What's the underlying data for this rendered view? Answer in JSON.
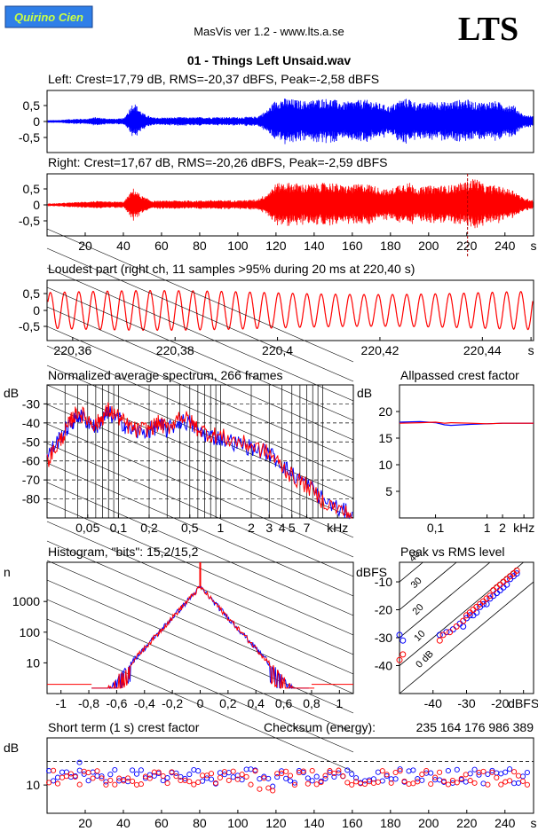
{
  "header": {
    "logo_badge": "Quirino Cien",
    "title": "MasVis ver 1.2 - www.lts.a.se",
    "filename": "01 - Things Left Unsaid.wav",
    "brand": "LTS",
    "colors": {
      "logo_bg": "#2f7fe8",
      "logo_text": "#c8ff46",
      "left": "#0000ff",
      "right": "#ff0000"
    }
  },
  "chart_data": [
    {
      "id": "left_waveform",
      "type": "line",
      "title": "Left: Crest=17,79 dB, RMS=-20,37 dBFS, Peak=-2,58 dBFS",
      "ylim": [
        -1,
        1
      ],
      "yticks": [
        "0,5",
        "0",
        "-0,5"
      ],
      "color": "#0000ff",
      "envelope": [
        0.05,
        0.05,
        0.08,
        0.1,
        0.1,
        0.16,
        0.12,
        0.1,
        0.12,
        0.72,
        0.3,
        0.15,
        0.15,
        0.15,
        0.16,
        0.15,
        0.16,
        0.16,
        0.17,
        0.16,
        0.16,
        0.17,
        0.18,
        0.4,
        0.8,
        0.85,
        0.8,
        0.75,
        0.8,
        0.85,
        0.82,
        0.7,
        0.75,
        0.8,
        0.78,
        0.65,
        0.55,
        0.8,
        0.85,
        0.65,
        0.72,
        0.75,
        0.7,
        0.78,
        0.82,
        0.7,
        0.72,
        0.75,
        0.65,
        0.6,
        0.25,
        0.2
      ]
    },
    {
      "id": "right_waveform",
      "type": "line",
      "title": "Right: Crest=17,67 dB, RMS=-20,26 dBFS, Peak=-2,59 dBFS",
      "ylim": [
        -1,
        1
      ],
      "yticks": [
        "0,5",
        "0",
        "-0,5"
      ],
      "color": "#ff0000",
      "envelope": [
        0.05,
        0.06,
        0.08,
        0.1,
        0.12,
        0.14,
        0.12,
        0.12,
        0.12,
        0.6,
        0.3,
        0.15,
        0.15,
        0.16,
        0.16,
        0.16,
        0.16,
        0.17,
        0.17,
        0.17,
        0.17,
        0.18,
        0.2,
        0.4,
        0.78,
        0.82,
        0.8,
        0.75,
        0.75,
        0.8,
        0.82,
        0.7,
        0.72,
        0.78,
        0.75,
        0.6,
        0.55,
        0.78,
        0.82,
        0.62,
        0.7,
        0.72,
        0.7,
        0.76,
        0.85,
        1.0,
        0.7,
        0.72,
        0.62,
        0.55,
        0.25,
        0.2
      ],
      "marker_s": 220.4,
      "xlim": [
        0,
        255
      ],
      "xticks": [
        "20",
        "40",
        "60",
        "80",
        "100",
        "120",
        "140",
        "160",
        "180",
        "200",
        "220",
        "240",
        "s"
      ]
    },
    {
      "id": "loudest_part",
      "type": "line",
      "title": "Loudest part (right ch, 11 samples >95% during 20 ms at 220,40 s)",
      "color": "#ff0000",
      "ylim": [
        -1,
        1
      ],
      "yticks": [
        "0,5",
        "0",
        "-0,5"
      ],
      "xlim": [
        220.355,
        220.45
      ],
      "xticks": [
        "220,36",
        "220,38",
        "220,4",
        "220,42",
        "220,44",
        "s"
      ],
      "cycles": 34,
      "amplitude": 0.7
    },
    {
      "id": "spectrum",
      "type": "line",
      "title": "Normalized average spectrum, 266 frames",
      "ylabel": "dB",
      "yticks": [
        "-30",
        "-40",
        "-50",
        "-60",
        "-70",
        "-80"
      ],
      "xticks": [
        "0,05",
        "0,1",
        "0,2",
        "0,5",
        "1",
        "2",
        "3",
        "4",
        "5",
        "7",
        "kHz"
      ],
      "ylim": [
        -90,
        -20
      ],
      "series": [
        {
          "name": "Left",
          "color": "#0000ff",
          "points": [
            [
              0.02,
              -58
            ],
            [
              0.025,
              -50
            ],
            [
              0.03,
              -44
            ],
            [
              0.035,
              -40
            ],
            [
              0.04,
              -36
            ],
            [
              0.05,
              -39
            ],
            [
              0.06,
              -42
            ],
            [
              0.07,
              -38
            ],
            [
              0.08,
              -35
            ],
            [
              0.1,
              -38
            ],
            [
              0.12,
              -42
            ],
            [
              0.15,
              -45
            ],
            [
              0.2,
              -44
            ],
            [
              0.25,
              -41
            ],
            [
              0.3,
              -44
            ],
            [
              0.4,
              -39
            ],
            [
              0.5,
              -40
            ],
            [
              0.6,
              -44
            ],
            [
              0.8,
              -47
            ],
            [
              1,
              -48
            ],
            [
              1.5,
              -51
            ],
            [
              2,
              -53
            ],
            [
              3,
              -56
            ],
            [
              4,
              -62
            ],
            [
              5,
              -67
            ],
            [
              7,
              -72
            ],
            [
              10,
              -80
            ],
            [
              15,
              -86
            ],
            [
              20,
              -88
            ]
          ]
        },
        {
          "name": "Right",
          "color": "#ff0000",
          "points": [
            [
              0.02,
              -60
            ],
            [
              0.025,
              -52
            ],
            [
              0.03,
              -45
            ],
            [
              0.035,
              -38
            ],
            [
              0.04,
              -34
            ],
            [
              0.05,
              -38
            ],
            [
              0.06,
              -41
            ],
            [
              0.07,
              -37
            ],
            [
              0.08,
              -33
            ],
            [
              0.1,
              -37
            ],
            [
              0.12,
              -41
            ],
            [
              0.15,
              -44
            ],
            [
              0.2,
              -43
            ],
            [
              0.25,
              -40
            ],
            [
              0.3,
              -43
            ],
            [
              0.4,
              -36
            ],
            [
              0.5,
              -39
            ],
            [
              0.6,
              -43
            ],
            [
              0.8,
              -46
            ],
            [
              1,
              -47
            ],
            [
              1.5,
              -50
            ],
            [
              2,
              -52
            ],
            [
              3,
              -56
            ],
            [
              4,
              -63
            ],
            [
              5,
              -68
            ],
            [
              7,
              -73
            ],
            [
              10,
              -81
            ],
            [
              15,
              -86
            ],
            [
              20,
              -89
            ]
          ]
        }
      ]
    },
    {
      "id": "allpassed_crest",
      "type": "line",
      "title": "Allpassed crest factor",
      "ylabel": "dB",
      "ylim": [
        0,
        25
      ],
      "yticks": [
        "20",
        "15",
        "10",
        "5"
      ],
      "xticks": [
        "0,1",
        "1",
        "2",
        "kHz"
      ],
      "series": [
        {
          "name": "Left",
          "color": "#0000ff",
          "points": [
            [
              0.02,
              18
            ],
            [
              0.05,
              18.1
            ],
            [
              0.1,
              17.9
            ],
            [
              0.15,
              17.5
            ],
            [
              0.2,
              17.4
            ],
            [
              0.5,
              17.6
            ],
            [
              1,
              17.7
            ],
            [
              2,
              17.8
            ],
            [
              8,
              17.8
            ]
          ]
        },
        {
          "name": "Right",
          "color": "#ff0000",
          "points": [
            [
              0.02,
              17.8
            ],
            [
              0.05,
              17.9
            ],
            [
              0.1,
              18
            ],
            [
              0.15,
              17.8
            ],
            [
              0.2,
              17.9
            ],
            [
              0.5,
              17.8
            ],
            [
              1,
              17.7
            ],
            [
              2,
              17.8
            ],
            [
              8,
              17.8
            ]
          ]
        }
      ]
    },
    {
      "id": "histogram",
      "type": "line",
      "title": "Histogram, \"bits\": 15,2/15,2",
      "ylabel": "n",
      "yticks": [
        "1000",
        "100",
        "10"
      ],
      "xticks": [
        "-1",
        "-0,8",
        "-0,6",
        "-0,4",
        "-0,2",
        "0",
        "0,2",
        "0,4",
        "0,6",
        "0,8",
        "1"
      ],
      "xlim": [
        -1.1,
        1.1
      ],
      "center_count": 3000,
      "edge_count": 2
    },
    {
      "id": "peak_vs_rms",
      "type": "scatter",
      "title": "Peak vs RMS level",
      "ylabel": "dBFS",
      "xlim": [
        -50,
        -10
      ],
      "ylim": [
        -50,
        -3
      ],
      "yticks": [
        "-10",
        "-20",
        "-30",
        "-40"
      ],
      "xticks": [
        "-40",
        "-30",
        "-20",
        "dBFS"
      ],
      "crest_lines": [
        "40",
        "30",
        "20",
        "10",
        "0 dB"
      ],
      "series": [
        {
          "name": "Left",
          "color": "#0000ff",
          "points": [
            [
              -50,
              -29
            ],
            [
              -49,
              -31
            ],
            [
              -38,
              -29
            ],
            [
              -36,
              -28
            ],
            [
              -34,
              -27
            ],
            [
              -32,
              -25
            ],
            [
              -31,
              -26
            ],
            [
              -30,
              -23
            ],
            [
              -29,
              -22
            ],
            [
              -28,
              -22
            ],
            [
              -27,
              -21
            ],
            [
              -26,
              -19
            ],
            [
              -25,
              -18
            ],
            [
              -24,
              -18
            ],
            [
              -23,
              -16
            ],
            [
              -22,
              -15
            ],
            [
              -21,
              -14
            ],
            [
              -20,
              -13
            ],
            [
              -19,
              -12
            ],
            [
              -18,
              -11
            ],
            [
              -17,
              -9
            ],
            [
              -16,
              -8
            ],
            [
              -15,
              -7
            ]
          ]
        },
        {
          "name": "Right",
          "color": "#ff0000",
          "points": [
            [
              -50,
              -38
            ],
            [
              -49,
              -36
            ],
            [
              -38,
              -31
            ],
            [
              -37,
              -29
            ],
            [
              -35,
              -28
            ],
            [
              -33,
              -26
            ],
            [
              -31,
              -24
            ],
            [
              -30,
              -22
            ],
            [
              -29,
              -21
            ],
            [
              -28,
              -20
            ],
            [
              -27,
              -19
            ],
            [
              -26,
              -18
            ],
            [
              -25,
              -17
            ],
            [
              -24,
              -16
            ],
            [
              -23,
              -15
            ],
            [
              -22,
              -13
            ],
            [
              -21,
              -12
            ],
            [
              -20,
              -11
            ],
            [
              -19,
              -10
            ],
            [
              -18,
              -9
            ],
            [
              -17,
              -8
            ],
            [
              -16,
              -7
            ],
            [
              -15,
              -6
            ]
          ]
        }
      ]
    },
    {
      "id": "short_term_crest",
      "type": "scatter",
      "title": "Short term (1 s) crest factor",
      "ylabel": "dB",
      "ylim": [
        4,
        20
      ],
      "yticks": [
        "10"
      ],
      "dashed_at": 15,
      "xlim": [
        0,
        255
      ],
      "xticks": [
        "20",
        "40",
        "60",
        "80",
        "100",
        "120",
        "140",
        "160",
        "180",
        "200",
        "220",
        "240",
        "s"
      ],
      "left_mean": 11.8,
      "right_mean": 11.6,
      "outlier": [
        17,
        14.8
      ]
    }
  ],
  "checksum": {
    "label": "Checksum (energy):",
    "value": "235 164 176 986 389"
  }
}
